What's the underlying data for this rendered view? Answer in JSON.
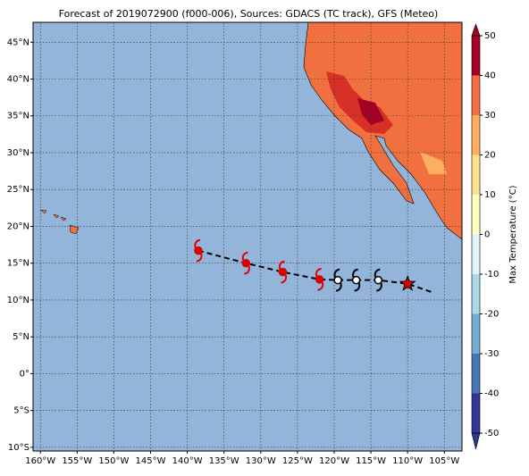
{
  "chart_data": {
    "type": "map",
    "title": "Forecast of 2019072900 (f000-006), Sources: GDACS (TC track), GFS (Meteo)",
    "xlim": [
      -161,
      -102.6
    ],
    "ylim": [
      -10.5,
      47.7
    ],
    "xticks": [
      {
        "value": -160,
        "label": "160°W"
      },
      {
        "value": -155,
        "label": "155°W"
      },
      {
        "value": -150,
        "label": "150°W"
      },
      {
        "value": -145,
        "label": "145°W"
      },
      {
        "value": -140,
        "label": "140°W"
      },
      {
        "value": -135,
        "label": "135°W"
      },
      {
        "value": -130,
        "label": "130°W"
      },
      {
        "value": -125,
        "label": "125°W"
      },
      {
        "value": -120,
        "label": "120°W"
      },
      {
        "value": -115,
        "label": "115°W"
      },
      {
        "value": -110,
        "label": "110°W"
      },
      {
        "value": -105,
        "label": "105°W"
      }
    ],
    "yticks": [
      {
        "value": -10,
        "label": "10°S"
      },
      {
        "value": -5,
        "label": "5°S"
      },
      {
        "value": 0,
        "label": "0°"
      },
      {
        "value": 5,
        "label": "5°N"
      },
      {
        "value": 10,
        "label": "10°N"
      },
      {
        "value": 15,
        "label": "15°N"
      },
      {
        "value": 20,
        "label": "20°N"
      },
      {
        "value": 25,
        "label": "25°N"
      },
      {
        "value": 30,
        "label": "30°N"
      },
      {
        "value": 35,
        "label": "35°N"
      },
      {
        "value": 40,
        "label": "40°N"
      },
      {
        "value": 45,
        "label": "45°N"
      }
    ],
    "grid": true,
    "track_line": {
      "lon": [
        -138.5,
        -132,
        -127,
        -122,
        -119.5,
        -117,
        -114,
        -110,
        -106.5
      ],
      "lat": [
        16.7,
        15,
        13.8,
        12.8,
        12.7,
        12.7,
        12.7,
        12.2,
        11
      ]
    },
    "positions": {
      "lon": [
        -138.5,
        -132,
        -127,
        -122,
        -119.5,
        -117,
        -114
      ],
      "lat": [
        16.7,
        15,
        13.8,
        12.8,
        12.7,
        12.7,
        12.7
      ],
      "colors": [
        "#e00000",
        "#e00000",
        "#e00000",
        "#e00000",
        "#000000",
        "#000000",
        "#000000"
      ]
    },
    "star": {
      "lon": -110,
      "lat": 12.2,
      "color": "#e00000"
    },
    "colorbar": {
      "label": "Max Temperature (°C)",
      "lim": [
        -50,
        50
      ],
      "ticks": [
        -50,
        -40,
        -30,
        -20,
        -10,
        0,
        10,
        20,
        30,
        40,
        50
      ],
      "colors": [
        "#313695",
        "#4575b4",
        "#74add1",
        "#abd9e9",
        "#e0f3f8",
        "#ffffbf",
        "#fee090",
        "#fdae61",
        "#f46d43",
        "#a50026"
      ]
    }
  }
}
